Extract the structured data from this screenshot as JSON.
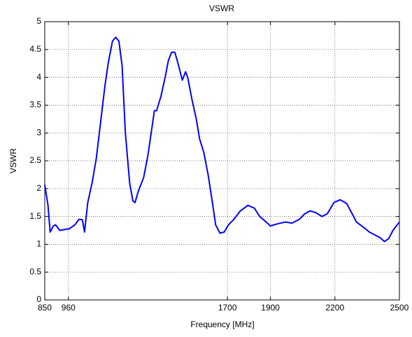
{
  "chart_data": {
    "type": "line",
    "title": "VSWR",
    "x_label": "Frequency [MHz]",
    "y_label": "VSWR",
    "x": [
      850,
      865,
      875,
      890,
      900,
      920,
      950,
      965,
      990,
      1010,
      1025,
      1035,
      1050,
      1070,
      1090,
      1110,
      1130,
      1145,
      1165,
      1180,
      1195,
      1210,
      1225,
      1245,
      1260,
      1270,
      1285,
      1310,
      1330,
      1345,
      1360,
      1370,
      1390,
      1410,
      1425,
      1440,
      1455,
      1470,
      1490,
      1505,
      1515,
      1535,
      1555,
      1570,
      1590,
      1610,
      1630,
      1645,
      1665,
      1685,
      1705,
      1730,
      1760,
      1795,
      1825,
      1850,
      1880,
      1900,
      1935,
      1970,
      2000,
      2035,
      2060,
      2085,
      2110,
      2140,
      2165,
      2195,
      2225,
      2255,
      2280,
      2300,
      2335,
      2360,
      2385,
      2410,
      2430,
      2450,
      2470,
      2500
    ],
    "series": [
      {
        "name": "VSWR",
        "color": "#0000ff",
        "values": [
          2.07,
          1.7,
          1.22,
          1.33,
          1.35,
          1.25,
          1.27,
          1.28,
          1.35,
          1.45,
          1.44,
          1.22,
          1.75,
          2.1,
          2.55,
          3.2,
          3.85,
          4.25,
          4.65,
          4.72,
          4.65,
          4.2,
          3.0,
          2.1,
          1.78,
          1.75,
          1.95,
          2.2,
          2.6,
          3.0,
          3.4,
          3.4,
          3.65,
          4.0,
          4.3,
          4.45,
          4.45,
          4.25,
          3.95,
          4.1,
          4.0,
          3.6,
          3.25,
          2.9,
          2.65,
          2.25,
          1.75,
          1.35,
          1.2,
          1.22,
          1.35,
          1.45,
          1.6,
          1.7,
          1.65,
          1.5,
          1.4,
          1.33,
          1.37,
          1.4,
          1.38,
          1.45,
          1.55,
          1.6,
          1.57,
          1.5,
          1.55,
          1.75,
          1.8,
          1.73,
          1.55,
          1.4,
          1.3,
          1.22,
          1.17,
          1.12,
          1.05,
          1.1,
          1.25,
          1.4
        ]
      }
    ],
    "xlim": [
      850,
      2500
    ],
    "xticks": [
      850,
      960,
      1700,
      1900,
      2200,
      2500
    ],
    "ylim": [
      0,
      5
    ],
    "yticks": [
      0,
      0.5,
      1,
      1.5,
      2,
      2.5,
      3,
      3.5,
      4,
      4.5,
      5
    ],
    "grid": true
  }
}
